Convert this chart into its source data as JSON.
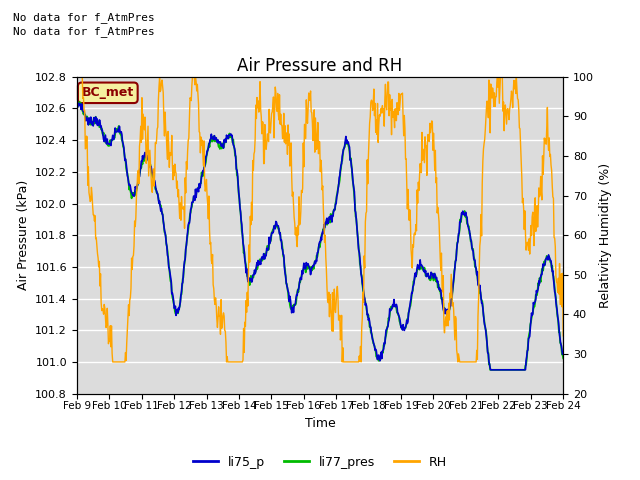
{
  "title": "Air Pressure and RH",
  "xlabel": "Time",
  "ylabel_left": "Air Pressure (kPa)",
  "ylabel_right": "Relativity Humidity (%)",
  "annotation_line1": "No data for f_AtmPres",
  "annotation_line2": "No data for f_AtmPres",
  "bc_met_label": "BC_met",
  "x_tick_labels": [
    "Feb 9",
    "Feb 10",
    "Feb 11",
    "Feb 12",
    "Feb 13",
    "Feb 14",
    "Feb 15",
    "Feb 16",
    "Feb 17",
    "Feb 18",
    "Feb 19",
    "Feb 20",
    "Feb 21",
    "Feb 22",
    "Feb 23",
    "Feb 24"
  ],
  "ylim_left": [
    100.8,
    102.8
  ],
  "ylim_right": [
    20,
    100
  ],
  "yticks_left": [
    100.8,
    101.0,
    101.2,
    101.4,
    101.6,
    101.8,
    102.0,
    102.2,
    102.4,
    102.6,
    102.8
  ],
  "yticks_right": [
    20,
    30,
    40,
    50,
    60,
    70,
    80,
    90,
    100
  ],
  "color_li75": "#0000cc",
  "color_li77": "#00bb00",
  "color_rh": "#ffa500",
  "background_color": "#dcdcdc",
  "legend_labels": [
    "li75_p",
    "li77_pres",
    "RH"
  ],
  "n_points": 800
}
